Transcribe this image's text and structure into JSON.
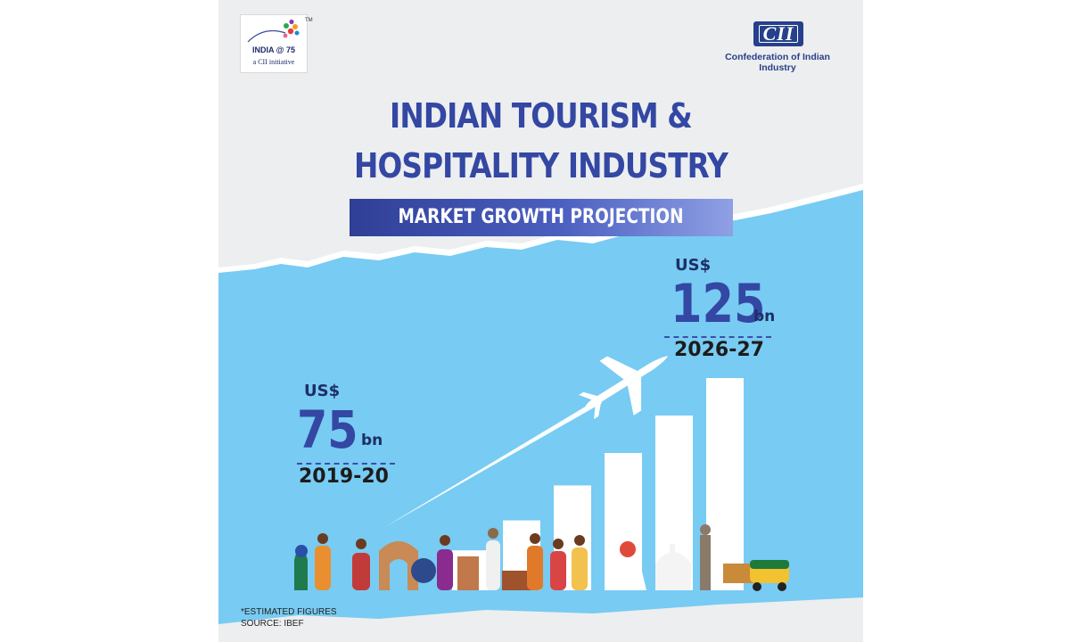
{
  "logo_left": {
    "name": "INDIA @ 75",
    "sub": "a CII initiative",
    "tm": "TM"
  },
  "logo_right": {
    "mark": "CII",
    "name": "Confederation of Indian Industry"
  },
  "title": {
    "line1": "INDIAN TOURISM &",
    "line2": "HOSPITALITY INDUSTRY"
  },
  "banner": "MARKET GROWTH PROJECTION",
  "stat_2019": {
    "currency": "US$",
    "value": "75",
    "unit": "bn",
    "year": "2019-20"
  },
  "stat_2026": {
    "currency": "US$",
    "value": "125",
    "unit": "bn",
    "year": "2026-27"
  },
  "footnote": {
    "line1": "*ESTIMATED FIGURES",
    "line2": "SOURCE: IBEF"
  },
  "bar_levels": [
    0.16,
    0.28,
    0.42,
    0.55,
    0.7,
    0.85
  ],
  "colors": {
    "title": "#3347a3",
    "sky": "#7dcdf3",
    "bar": "#ffffff"
  },
  "icons": [
    "airplane-icon",
    "bird-icon"
  ]
}
